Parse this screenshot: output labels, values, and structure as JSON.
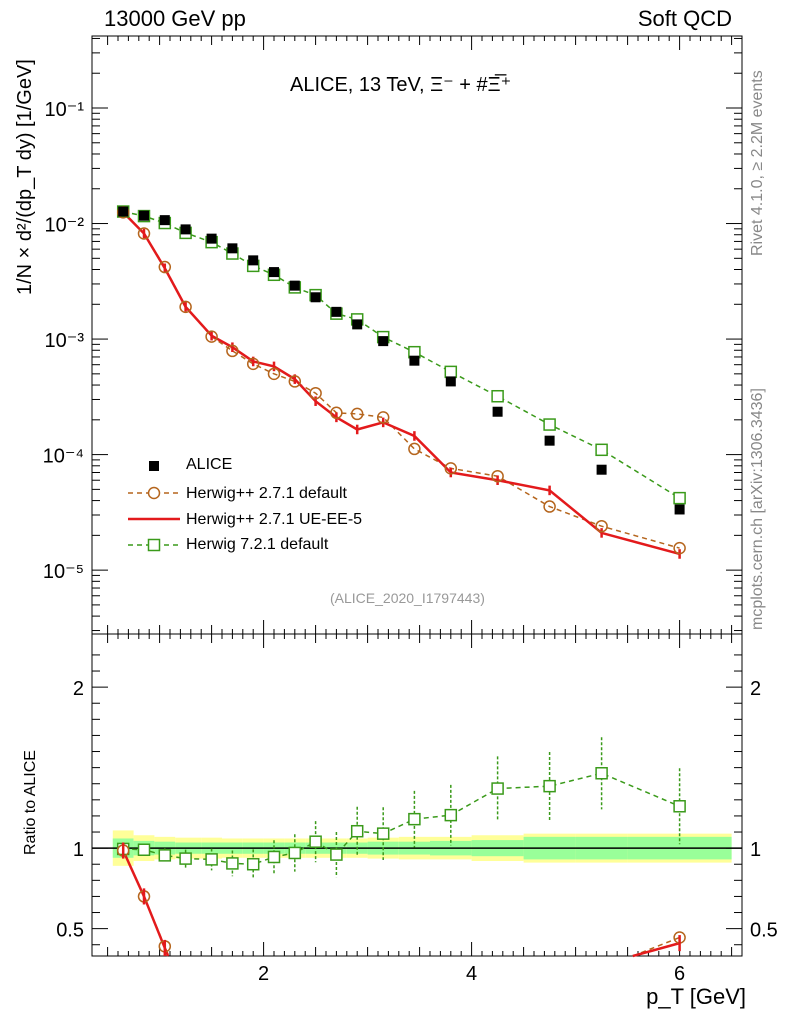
{
  "header": {
    "left": "13000 GeV pp",
    "right": "Soft QCD"
  },
  "side_text": {
    "top": "Rivet 4.1.0, ≥ 2.2M events",
    "bottom": "mcplots.cern.ch [arXiv:1306.3436]"
  },
  "analysis_id": "(ALICE_2020_I1797443)",
  "chart_data": [
    {
      "type": "scatter",
      "title": "ALICE, 13 TeV, Ξ⁻ + #Ξ̅⁺",
      "xlabel": "p_T [GeV]",
      "ylabel": "1/N × d²/(dp_T dy) [1/GeV]",
      "yscale": "log",
      "xlim": [
        0.35,
        6.6
      ],
      "ylim": [
        2.8e-06,
        0.42
      ],
      "ytick_labels": [
        "10⁻⁵",
        "10⁻⁴",
        "10⁻³",
        "10⁻²",
        "10⁻¹"
      ],
      "xtick_labels": [
        "2",
        "4",
        "6"
      ],
      "x": [
        0.65,
        0.85,
        1.05,
        1.25,
        1.5,
        1.7,
        1.9,
        2.1,
        2.3,
        2.5,
        2.7,
        2.9,
        3.15,
        3.45,
        3.8,
        4.25,
        4.75,
        5.25,
        6.0
      ],
      "series": [
        {
          "name": "ALICE",
          "color": "#000000",
          "marker": "filled-square",
          "values": [
            0.0127,
            0.0117,
            0.0107,
            0.0089,
            0.0074,
            0.0061,
            0.0048,
            0.0038,
            0.0029,
            0.0023,
            0.00172,
            0.00134,
            0.00096,
            0.00065,
            0.00043,
            0.000235,
            0.000132,
            7.4e-05,
            3.35e-05
          ]
        },
        {
          "name": "Herwig++ 2.7.1 default",
          "color": "#b5651d",
          "marker": "open-circle",
          "line": "dashed",
          "values": [
            0.0125,
            0.0082,
            0.0042,
            0.0019,
            0.00105,
            0.00079,
            0.00061,
            0.0005,
            0.00043,
            0.00034,
            0.00023,
            0.000225,
            0.00021,
            0.000112,
            7.6e-05,
            6.5e-05,
            3.55e-05,
            2.4e-05,
            1.55e-05
          ]
        },
        {
          "name": "Herwig++ 2.7.1 UE-EE-5",
          "color": "#e31a1c",
          "marker": "none",
          "line": "solid",
          "values": [
            0.0125,
            0.0082,
            0.0041,
            0.0019,
            0.00107,
            0.00085,
            0.00064,
            0.00058,
            0.00045,
            0.00029,
            0.00021,
            0.000165,
            0.00019,
            0.000145,
            7e-05,
            6e-05,
            4.9e-05,
            2.1e-05,
            1.38e-05
          ]
        },
        {
          "name": "Herwig 7.2.1 default",
          "color": "#3a9a1a",
          "marker": "open-square",
          "line": "dashed",
          "values": [
            0.0127,
            0.0116,
            0.0101,
            0.0083,
            0.0069,
            0.0055,
            0.0043,
            0.0036,
            0.0028,
            0.0024,
            0.00166,
            0.00148,
            0.00104,
            0.00077,
            0.00052,
            0.00032,
            0.000182,
            0.00011,
            4.2e-05
          ]
        }
      ]
    },
    {
      "type": "scatter",
      "title": "",
      "xlabel": "p_T [GeV]",
      "ylabel": "Ratio to ALICE",
      "ylim": [
        0.33,
        2.33
      ],
      "ytick_labels": [
        "0.5",
        "1",
        "2"
      ],
      "band_edges": [
        0.55,
        0.75,
        0.95,
        1.15,
        1.4,
        1.6,
        1.8,
        2.0,
        2.2,
        2.4,
        2.6,
        2.8,
        3.0,
        3.3,
        3.6,
        4.0,
        4.5,
        5.0,
        5.5,
        6.5
      ],
      "band_inner": [
        0.06,
        0.045,
        0.04,
        0.035,
        0.035,
        0.035,
        0.035,
        0.035,
        0.035,
        0.035,
        0.035,
        0.035,
        0.04,
        0.04,
        0.045,
        0.05,
        0.07,
        0.07,
        0.07
      ],
      "band_outer": [
        0.11,
        0.08,
        0.07,
        0.065,
        0.065,
        0.06,
        0.06,
        0.06,
        0.06,
        0.06,
        0.06,
        0.06,
        0.065,
        0.07,
        0.07,
        0.08,
        0.09,
        0.09,
        0.09
      ],
      "x": [
        0.65,
        0.85,
        1.05,
        1.25,
        1.5,
        1.7,
        1.9,
        2.1,
        2.3,
        2.5,
        2.7,
        2.9,
        3.15,
        3.45,
        3.8,
        4.25,
        4.75,
        5.25,
        6.0
      ],
      "series": [
        {
          "name": "Herwig 7.2.1 default / ALICE",
          "color": "#3a9a1a",
          "values": [
            0.995,
            0.99,
            0.955,
            0.935,
            0.93,
            0.905,
            0.9,
            0.945,
            0.97,
            1.04,
            0.96,
            1.105,
            1.09,
            1.18,
            1.205,
            1.37,
            1.385,
            1.465,
            1.26
          ]
        },
        {
          "name": "Herwig++ 2.7.1 default / ALICE",
          "color": "#b5651d",
          "values": [
            0.985,
            0.7,
            0.39,
            null,
            null,
            null,
            null,
            null,
            null,
            null,
            null,
            null,
            null,
            null,
            null,
            null,
            null,
            null,
            0.445
          ]
        },
        {
          "name": "Herwig++ 2.7.1 UE-EE-5 / ALICE",
          "color": "#e31a1c",
          "values": [
            0.985,
            0.7,
            0.38,
            null,
            null,
            null,
            null,
            null,
            null,
            null,
            null,
            null,
            null,
            null,
            null,
            null,
            null,
            null,
            0.41
          ]
        }
      ]
    }
  ]
}
